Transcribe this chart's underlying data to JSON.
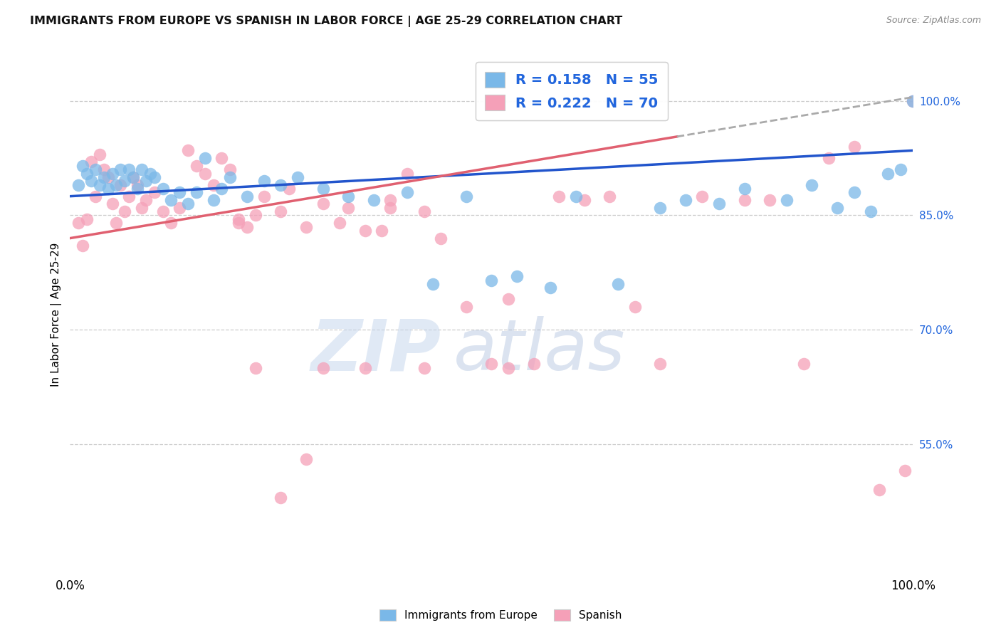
{
  "title": "IMMIGRANTS FROM EUROPE VS SPANISH IN LABOR FORCE | AGE 25-29 CORRELATION CHART",
  "source": "Source: ZipAtlas.com",
  "ylabel": "In Labor Force | Age 25-29",
  "right_yticks": [
    55.0,
    70.0,
    85.0,
    100.0
  ],
  "xmin": 0.0,
  "xmax": 100.0,
  "ymin": 38.0,
  "ymax": 106.0,
  "blue_R": 0.158,
  "blue_N": 55,
  "pink_R": 0.222,
  "pink_N": 70,
  "blue_color": "#7ab8e8",
  "pink_color": "#f5a0b8",
  "blue_line_color": "#2255cc",
  "pink_line_color": "#e06070",
  "dashed_line_color": "#aaaaaa",
  "legend_label_blue": "Immigrants from Europe",
  "legend_label_pink": "Spanish",
  "blue_line_x0": 0.0,
  "blue_line_y0": 87.5,
  "blue_line_x1": 100.0,
  "blue_line_y1": 93.5,
  "pink_line_x0": 0.0,
  "pink_line_y0": 82.0,
  "pink_line_x1": 100.0,
  "pink_line_y1": 100.5,
  "pink_solid_end": 72.0,
  "blue_scatter_x": [
    1.0,
    1.5,
    2.0,
    2.5,
    3.0,
    3.5,
    4.0,
    4.5,
    5.0,
    5.5,
    6.0,
    6.5,
    7.0,
    7.5,
    8.0,
    8.5,
    9.0,
    9.5,
    10.0,
    11.0,
    12.0,
    13.0,
    14.0,
    15.0,
    16.0,
    17.0,
    18.0,
    19.0,
    21.0,
    23.0,
    25.0,
    27.0,
    30.0,
    33.0,
    36.0,
    40.0,
    43.0,
    47.0,
    50.0,
    53.0,
    57.0,
    60.0,
    65.0,
    70.0,
    73.0,
    77.0,
    80.0,
    85.0,
    88.0,
    91.0,
    93.0,
    95.0,
    97.0,
    98.5,
    100.0
  ],
  "blue_scatter_y": [
    89.0,
    91.5,
    90.5,
    89.5,
    91.0,
    89.0,
    90.0,
    88.5,
    90.5,
    89.0,
    91.0,
    89.5,
    91.0,
    90.0,
    88.5,
    91.0,
    89.5,
    90.5,
    90.0,
    88.5,
    87.0,
    88.0,
    86.5,
    88.0,
    92.5,
    87.0,
    88.5,
    90.0,
    87.5,
    89.5,
    89.0,
    90.0,
    88.5,
    87.5,
    87.0,
    88.0,
    76.0,
    87.5,
    76.5,
    77.0,
    75.5,
    87.5,
    76.0,
    86.0,
    87.0,
    86.5,
    88.5,
    87.0,
    89.0,
    86.0,
    88.0,
    85.5,
    90.5,
    91.0,
    100.0
  ],
  "pink_scatter_x": [
    1.0,
    1.5,
    2.0,
    2.5,
    3.0,
    3.5,
    4.0,
    4.5,
    5.0,
    5.5,
    6.0,
    6.5,
    7.0,
    7.5,
    8.0,
    8.5,
    9.0,
    10.0,
    11.0,
    12.0,
    13.0,
    14.0,
    15.0,
    16.0,
    17.0,
    18.0,
    19.0,
    20.0,
    21.0,
    22.0,
    23.0,
    25.0,
    26.0,
    28.0,
    30.0,
    32.0,
    33.0,
    35.0,
    37.0,
    38.0,
    40.0,
    42.0,
    44.0,
    47.0,
    50.0,
    52.0,
    55.0,
    58.0,
    61.0,
    64.0,
    67.0,
    70.0,
    75.0,
    80.0,
    83.0,
    87.0,
    90.0,
    93.0,
    96.0,
    99.0,
    100.0,
    22.0,
    30.0,
    38.0,
    52.0,
    20.0,
    28.0,
    42.0,
    25.0,
    35.0
  ],
  "pink_scatter_y": [
    84.0,
    81.0,
    84.5,
    92.0,
    87.5,
    93.0,
    91.0,
    90.0,
    86.5,
    84.0,
    89.0,
    85.5,
    87.5,
    90.0,
    89.0,
    86.0,
    87.0,
    88.0,
    85.5,
    84.0,
    86.0,
    93.5,
    91.5,
    90.5,
    89.0,
    92.5,
    91.0,
    84.5,
    83.5,
    85.0,
    87.5,
    85.5,
    88.5,
    83.5,
    86.5,
    84.0,
    86.0,
    83.0,
    83.0,
    87.0,
    90.5,
    85.5,
    82.0,
    73.0,
    65.5,
    74.0,
    65.5,
    87.5,
    87.0,
    87.5,
    73.0,
    65.5,
    87.5,
    87.0,
    87.0,
    65.5,
    92.5,
    94.0,
    49.0,
    51.5,
    100.0,
    65.0,
    65.0,
    86.0,
    65.0,
    84.0,
    53.0,
    65.0,
    48.0,
    65.0
  ]
}
